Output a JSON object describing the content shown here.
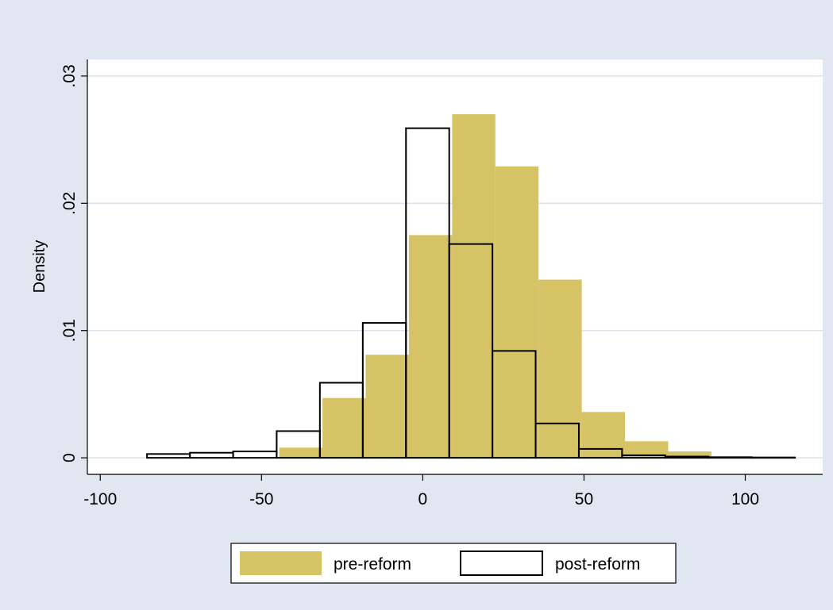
{
  "chart_data": {
    "type": "histogram",
    "xlabel": "",
    "ylabel": "Density",
    "xlim": [
      -104,
      124
    ],
    "ylim": [
      -0.0013,
      0.0313
    ],
    "x_ticks": [
      {
        "value": -100,
        "label": "-100"
      },
      {
        "value": -50,
        "label": "-50"
      },
      {
        "value": 0,
        "label": "0"
      },
      {
        "value": 50,
        "label": "50"
      },
      {
        "value": 100,
        "label": "100"
      }
    ],
    "y_ticks": [
      {
        "value": 0,
        "label": "0"
      },
      {
        "value": 0.01,
        "label": ".01"
      },
      {
        "value": 0.02,
        "label": ".02"
      },
      {
        "value": 0.03,
        "label": ".03"
      }
    ],
    "grid": true,
    "legend_position": "bottom",
    "series": [
      {
        "name": "pre-reform",
        "style": "filled",
        "color": "#d6c366",
        "bins": [
          {
            "x0": -44.5,
            "x1": -31.1,
            "y": 0.0008
          },
          {
            "x0": -31.1,
            "x1": -17.7,
            "y": 0.0047
          },
          {
            "x0": -17.7,
            "x1": -4.3,
            "y": 0.0081
          },
          {
            "x0": -4.3,
            "x1": 9.1,
            "y": 0.0175
          },
          {
            "x0": 9.1,
            "x1": 22.5,
            "y": 0.027
          },
          {
            "x0": 22.5,
            "x1": 35.9,
            "y": 0.0229
          },
          {
            "x0": 35.9,
            "x1": 49.3,
            "y": 0.014
          },
          {
            "x0": 49.3,
            "x1": 62.7,
            "y": 0.0036
          },
          {
            "x0": 62.7,
            "x1": 76.1,
            "y": 0.0013
          },
          {
            "x0": 76.1,
            "x1": 89.5,
            "y": 0.0005
          }
        ]
      },
      {
        "name": "post-reform",
        "style": "outline",
        "color": "#000000",
        "bins": [
          {
            "x0": -85.5,
            "x1": -72.2,
            "y": 0.0003
          },
          {
            "x0": -72.2,
            "x1": -58.8,
            "y": 0.0004
          },
          {
            "x0": -58.8,
            "x1": -45.3,
            "y": 0.0005
          },
          {
            "x0": -45.3,
            "x1": -31.9,
            "y": 0.0021
          },
          {
            "x0": -31.9,
            "x1": -18.6,
            "y": 0.0059
          },
          {
            "x0": -18.6,
            "x1": -5.2,
            "y": 0.0106
          },
          {
            "x0": -5.2,
            "x1": 8.2,
            "y": 0.0259
          },
          {
            "x0": 8.2,
            "x1": 21.6,
            "y": 0.0168
          },
          {
            "x0": 21.6,
            "x1": 35.0,
            "y": 0.0084
          },
          {
            "x0": 35.0,
            "x1": 48.4,
            "y": 0.0027
          },
          {
            "x0": 48.4,
            "x1": 61.8,
            "y": 0.0007
          },
          {
            "x0": 61.8,
            "x1": 75.2,
            "y": 0.0002
          },
          {
            "x0": 75.2,
            "x1": 88.6,
            "y": 0.0001
          },
          {
            "x0": 88.6,
            "x1": 102.0,
            "y": 5e-05
          },
          {
            "x0": 102.0,
            "x1": 115.4,
            "y": 3e-05
          }
        ]
      }
    ]
  },
  "colors": {
    "background": "#e1e7f0",
    "plot_area": "#ffffff",
    "grid": "#dde3ec",
    "pre_fill": "#d6c366"
  }
}
